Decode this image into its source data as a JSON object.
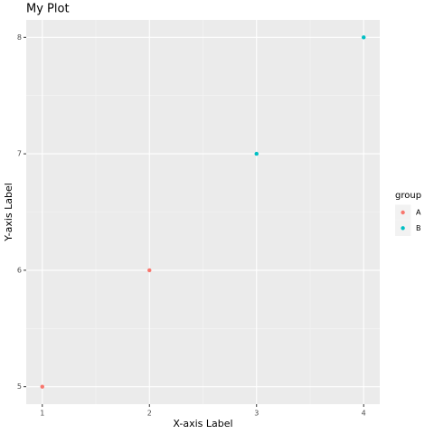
{
  "chart_data": {
    "type": "scatter",
    "title": "My Plot",
    "x_label": "X-axis Label",
    "y_label": "Y-axis Label",
    "legend_title": "group",
    "legend": "right",
    "grid": true,
    "series": [
      {
        "name": "A",
        "color": "#F8766D",
        "x": [
          1,
          2
        ],
        "values": [
          5,
          6
        ]
      },
      {
        "name": "B",
        "color": "#00BFC4",
        "x": [
          3,
          4
        ],
        "values": [
          7,
          8
        ]
      }
    ],
    "xlim": [
      0.85,
      4.15
    ],
    "xticks": [
      1,
      2,
      3,
      4
    ],
    "ylim": [
      4.85,
      8.15
    ],
    "yticks": [
      5,
      6,
      7,
      8
    ]
  }
}
